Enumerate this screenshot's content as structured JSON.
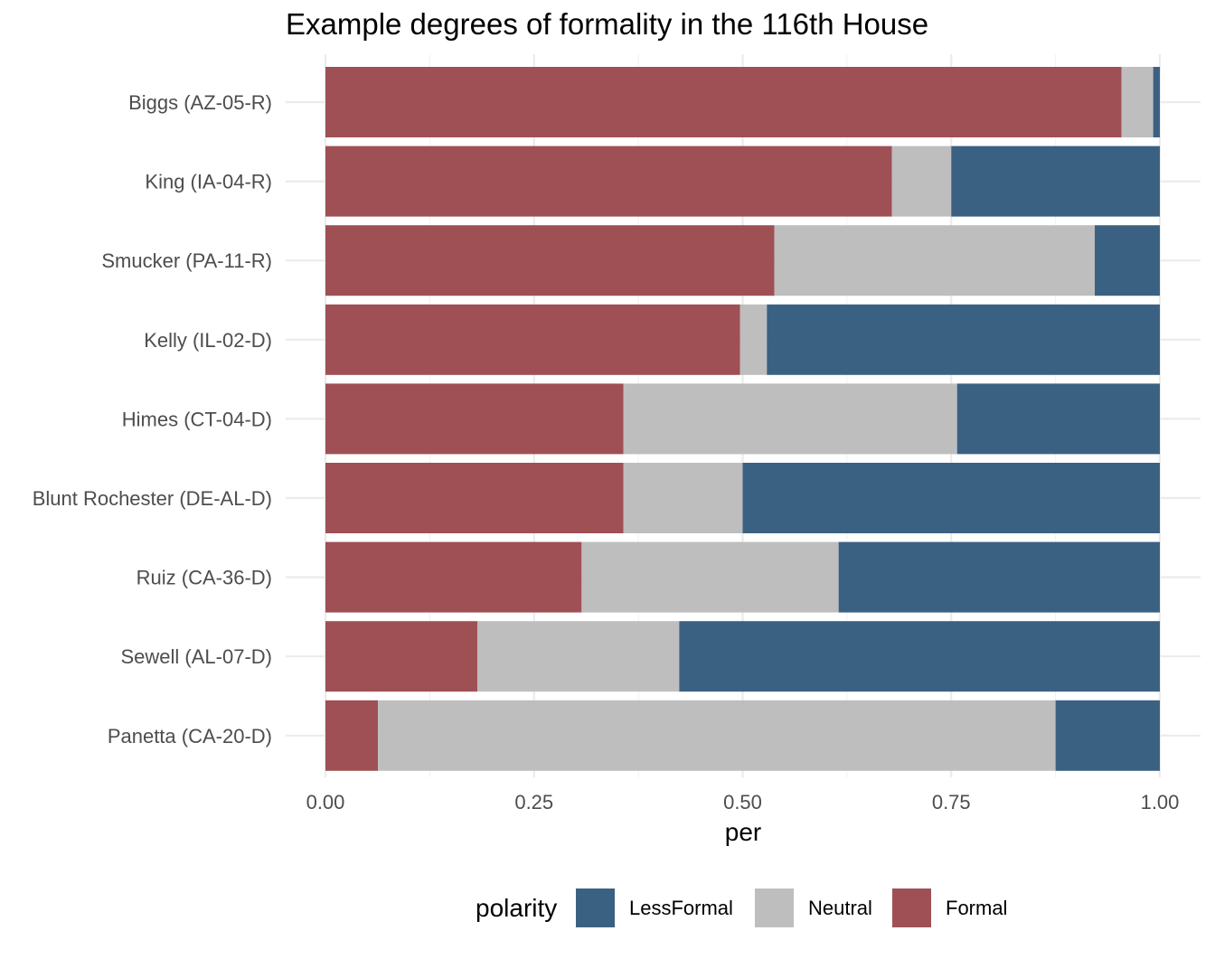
{
  "chart_data": {
    "type": "bar",
    "orientation": "horizontal",
    "stacked": true,
    "title": "Example degrees of formality in the 116th House",
    "xlabel": "per",
    "ylabel": "",
    "xlim": [
      0,
      1
    ],
    "xticks": [
      "0.00",
      "0.25",
      "0.50",
      "0.75",
      "1.00"
    ],
    "xtick_values": [
      0,
      0.25,
      0.5,
      0.75,
      1.0
    ],
    "grid": true,
    "legend_position": "bottom",
    "legend_title": "polarity",
    "categories": [
      "Biggs (AZ-05-R)",
      "King (IA-04-R)",
      "Smucker (PA-11-R)",
      "Kelly (IL-02-D)",
      "Himes (CT-04-D)",
      "Blunt Rochester (DE-AL-D)",
      "Ruiz (CA-36-D)",
      "Sewell (AL-07-D)",
      "Panetta (CA-20-D)"
    ],
    "series": [
      {
        "name": "LessFormal",
        "color": "#3b6182",
        "values": [
          0.008,
          0.25,
          0.078,
          0.471,
          0.243,
          0.5,
          0.385,
          0.576,
          0.125
        ]
      },
      {
        "name": "Neutral",
        "color": "#bebebe",
        "values": [
          0.038,
          0.071,
          0.384,
          0.032,
          0.4,
          0.143,
          0.308,
          0.242,
          0.812
        ]
      },
      {
        "name": "Formal",
        "color": "#9e5055",
        "values": [
          0.954,
          0.679,
          0.538,
          0.497,
          0.357,
          0.357,
          0.307,
          0.182,
          0.063
        ]
      }
    ],
    "stack_order_left_to_right": [
      "Formal",
      "Neutral",
      "LessFormal"
    ]
  }
}
